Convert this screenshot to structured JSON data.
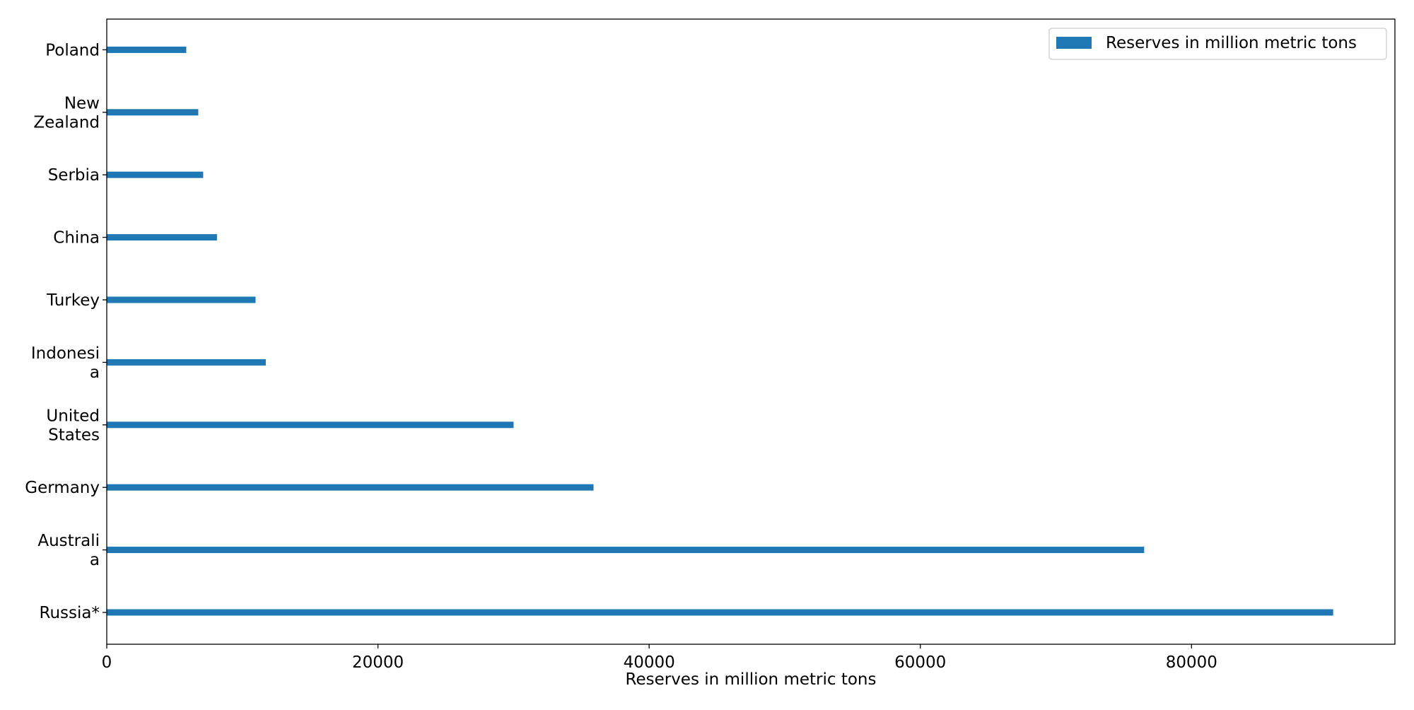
{
  "chart_data": {
    "type": "bar",
    "orientation": "horizontal",
    "categories": [
      [
        "Russia*"
      ],
      [
        "Australi",
        "a"
      ],
      [
        "Germany"
      ],
      [
        "United",
        "States"
      ],
      [
        "Indonesi",
        "a"
      ],
      [
        "Turkey"
      ],
      [
        "China"
      ],
      [
        "Serbia"
      ],
      [
        "New",
        "Zealand"
      ],
      [
        "Poland"
      ]
    ],
    "series": [
      {
        "name": "Reserves in million metric tons",
        "color": "#1f77b4",
        "values": [
          90447,
          76508,
          35900,
          30003,
          11728,
          10975,
          8128,
          7112,
          6750,
          5865
        ]
      }
    ],
    "xlabel": "Reserves in million metric tons",
    "ylabel": "",
    "xlim": [
      0,
      95000
    ],
    "xticks": [
      0,
      20000,
      40000,
      60000,
      80000
    ],
    "grid": false,
    "legend_position": "top-right"
  }
}
